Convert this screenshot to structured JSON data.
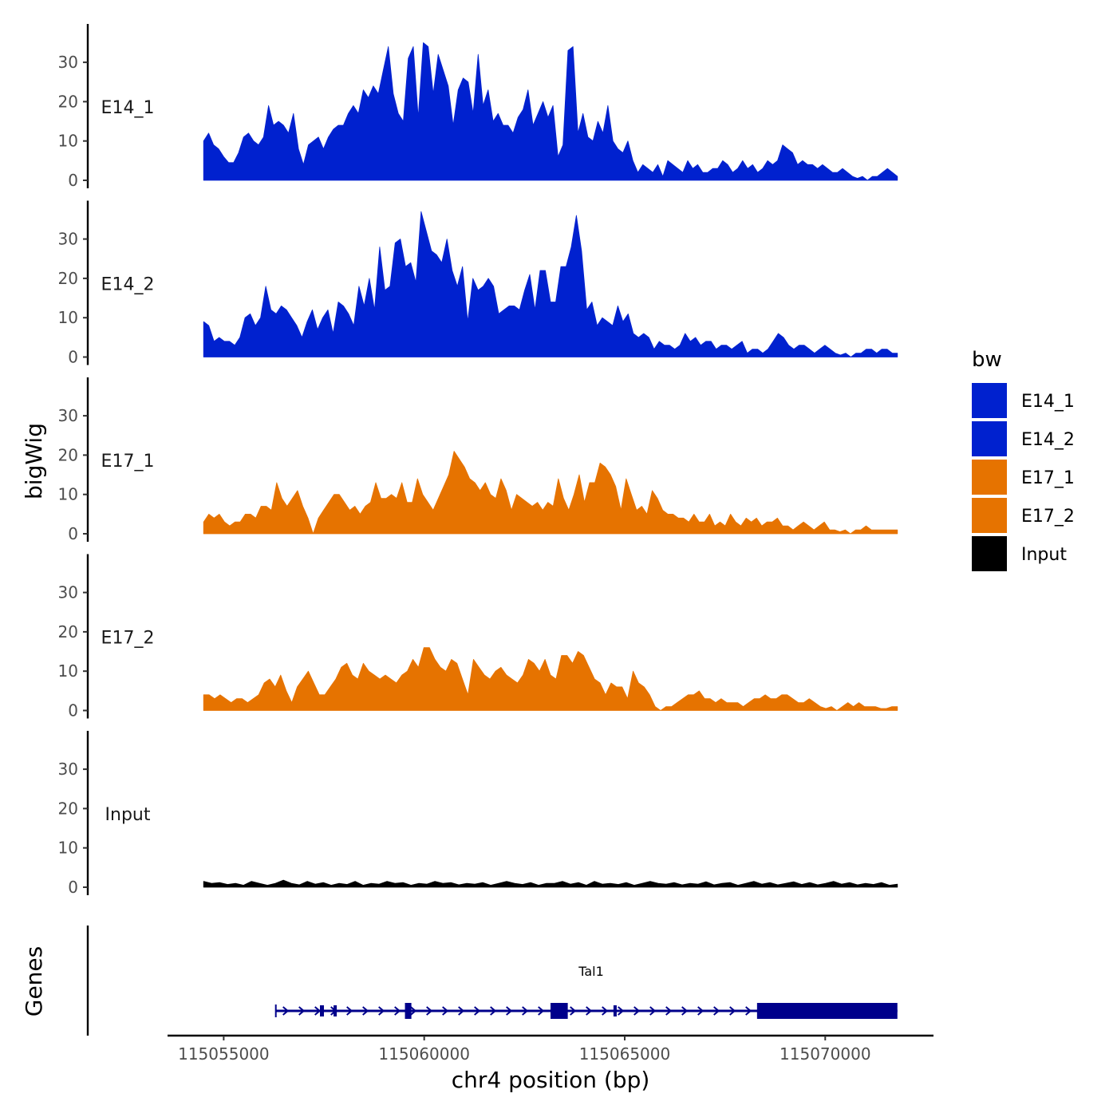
{
  "chart_data": {
    "type": "area",
    "ylabel": "bigWig",
    "xlabel": "chr4 position (bp)",
    "x_range": [
      115054500,
      115071800
    ],
    "x_axis_range": [
      115053600,
      115072700
    ],
    "x_ticks": [
      115055000,
      115060000,
      115065000,
      115070000
    ],
    "x_tick_labels": [
      "115055000",
      "115060000",
      "115065000",
      "115070000"
    ],
    "y_range": [
      0,
      40
    ],
    "y_ticks": [
      0,
      10,
      20,
      30
    ],
    "y_tick_labels": [
      "0",
      "10",
      "20",
      "30"
    ],
    "tracks": [
      {
        "name": "E14_1",
        "color": "#0021CF",
        "values": [
          10,
          12,
          9,
          8,
          6,
          4.5,
          4.5,
          7,
          11,
          12,
          10,
          9,
          11,
          19,
          14,
          15,
          14,
          12,
          17,
          8,
          4,
          9,
          10,
          11,
          8,
          11,
          13,
          14,
          14,
          17,
          19,
          17,
          23,
          21,
          24,
          22,
          28,
          34,
          22,
          17,
          15,
          31,
          34,
          16,
          35,
          34,
          22,
          32,
          28,
          24,
          14,
          23,
          26,
          25,
          17,
          32,
          19,
          23,
          15,
          17,
          14,
          14,
          12,
          16,
          18,
          23,
          14,
          17,
          20,
          16,
          19,
          6,
          9,
          33,
          34,
          12,
          17,
          11,
          10,
          15,
          12,
          19,
          10,
          8,
          7,
          10,
          5,
          2,
          4,
          3,
          2,
          4,
          1,
          5,
          4,
          3,
          2,
          5,
          3,
          4,
          2,
          2,
          3,
          3,
          5,
          4,
          2,
          3,
          5,
          3,
          4,
          2,
          3,
          5,
          4,
          5,
          9,
          8,
          7,
          4,
          5,
          4,
          4,
          3,
          4,
          3,
          2,
          2,
          3,
          2,
          1,
          0.5,
          1,
          0,
          1,
          1,
          2,
          3,
          2,
          1
        ]
      },
      {
        "name": "E14_2",
        "color": "#0021CF",
        "values": [
          9,
          8,
          4,
          5,
          4,
          4,
          3,
          5,
          10,
          11,
          8,
          10,
          18,
          12,
          11,
          13,
          12,
          10,
          8,
          5,
          9,
          12,
          7,
          10,
          12,
          6,
          14,
          13,
          11,
          8,
          18,
          13,
          20,
          12,
          28,
          17,
          18,
          29,
          30,
          23,
          24,
          19,
          37,
          32,
          27,
          26,
          24,
          30,
          22,
          18,
          23,
          9,
          20,
          17,
          18,
          20,
          18,
          11,
          12,
          13,
          13,
          12,
          17,
          21,
          12,
          22,
          22,
          14,
          14,
          23,
          23,
          28,
          36,
          27,
          12,
          14,
          8,
          10,
          9,
          8,
          13,
          9,
          11,
          6,
          5,
          6,
          5,
          2,
          4,
          3,
          3,
          2,
          3,
          6,
          4,
          5,
          3,
          4,
          4,
          2,
          3,
          3,
          2,
          3,
          4,
          1,
          2,
          2,
          1,
          2,
          4,
          6,
          5,
          3,
          2,
          3,
          3,
          2,
          1,
          2,
          3,
          2,
          1,
          0.5,
          1,
          0,
          1,
          1,
          2,
          2,
          1,
          2,
          2,
          1,
          1
        ]
      },
      {
        "name": "E17_1",
        "color": "#E67300",
        "values": [
          3,
          5,
          4,
          5,
          3,
          2,
          3,
          3,
          5,
          5,
          4,
          7,
          7,
          6,
          13,
          9,
          7,
          9,
          11,
          7,
          4,
          0,
          4,
          6,
          8,
          10,
          10,
          8,
          6,
          7,
          5,
          7,
          8,
          13,
          9,
          9,
          10,
          9,
          13,
          8,
          8,
          14,
          10,
          8,
          6,
          9,
          12,
          15,
          21,
          19,
          17,
          14,
          13,
          11,
          13,
          10,
          9,
          14,
          11,
          6,
          10,
          9,
          8,
          7,
          8,
          6,
          8,
          7,
          14,
          9,
          6,
          10,
          15,
          8,
          13,
          13,
          18,
          17,
          15,
          12,
          6,
          14,
          10,
          6,
          7,
          5,
          11,
          9,
          6,
          5,
          5,
          4,
          4,
          3,
          5,
          3,
          3,
          5,
          2,
          3,
          2,
          5,
          3,
          2,
          4,
          3,
          4,
          2,
          3,
          3,
          4,
          2,
          2,
          1,
          2,
          3,
          2,
          1,
          2,
          3,
          1,
          1,
          0.5,
          1,
          0,
          1,
          1,
          2,
          1,
          1,
          1,
          1,
          1,
          1
        ]
      },
      {
        "name": "E17_2",
        "color": "#E67300",
        "values": [
          4,
          4,
          3,
          4,
          3,
          2,
          3,
          3,
          2,
          3,
          4,
          7,
          8,
          6,
          9,
          5,
          2,
          6,
          8,
          10,
          7,
          4,
          4,
          6,
          8,
          11,
          12,
          9,
          8,
          12,
          10,
          9,
          8,
          9,
          8,
          7,
          9,
          10,
          13,
          11,
          16,
          16,
          13,
          11,
          10,
          13,
          12,
          8,
          4,
          13,
          11,
          9,
          8,
          10,
          11,
          9,
          8,
          7,
          9,
          13,
          12,
          10,
          13,
          9,
          8,
          14,
          14,
          12,
          15,
          14,
          11,
          8,
          7,
          4,
          7,
          6,
          6,
          3,
          10,
          7,
          6,
          4,
          1,
          0,
          1,
          1,
          2,
          3,
          4,
          4,
          5,
          3,
          3,
          2,
          3,
          2,
          2,
          2,
          1,
          2,
          3,
          3,
          4,
          3,
          3,
          4,
          4,
          3,
          2,
          2,
          3,
          2,
          1,
          0.5,
          1,
          0,
          1,
          2,
          1,
          2,
          1,
          1,
          1,
          0.5,
          0.5,
          1,
          1
        ]
      },
      {
        "name": "Input",
        "color": "#000000",
        "values": [
          1.5,
          1,
          1.2,
          0.7,
          1,
          0.5,
          1.5,
          1,
          0.5,
          1,
          1.8,
          1,
          0.6,
          1.5,
          0.8,
          1.2,
          0.5,
          1,
          0.7,
          1.5,
          0.5,
          1,
          0.8,
          1.5,
          1,
          1.2,
          0.5,
          1,
          0.8,
          1.5,
          1,
          1.2,
          0.6,
          1,
          0.8,
          1.2,
          0.5,
          1,
          1.5,
          1,
          0.7,
          1.2,
          0.5,
          1,
          1,
          1.5,
          0.8,
          1.2,
          0.5,
          1.5,
          0.8,
          1,
          0.7,
          1.2,
          0.5,
          1,
          1.5,
          1,
          0.8,
          1.2,
          0.6,
          1,
          0.8,
          1.4,
          0.6,
          1,
          1.2,
          0.5,
          1,
          1.5,
          0.8,
          1.2,
          0.6,
          1,
          1.4,
          0.7,
          1.2,
          0.6,
          1,
          1.5,
          0.8,
          1.2,
          0.6,
          1,
          0.7,
          1.2,
          0.5,
          0.8
        ]
      }
    ],
    "legend": {
      "title": "bw",
      "position": "right",
      "entries": [
        {
          "label": "E14_1",
          "color": "#0021CF"
        },
        {
          "label": "E14_2",
          "color": "#0021CF"
        },
        {
          "label": "E17_1",
          "color": "#E67300"
        },
        {
          "label": "E17_2",
          "color": "#E67300"
        },
        {
          "label": "Input",
          "color": "#000000"
        }
      ]
    },
    "gene_track": {
      "label": "Genes",
      "color": "#00008B",
      "gene": {
        "name": "Tal1",
        "start": 115056300,
        "end": 115071800,
        "strand": "+",
        "exons": [
          [
            115057400,
            115057500,
            "small"
          ],
          [
            115057740,
            115057820,
            "small"
          ],
          [
            115059520,
            115059680,
            "medium"
          ],
          [
            115063150,
            115063580,
            "large"
          ],
          [
            115064720,
            115064800,
            "small"
          ],
          [
            115068300,
            115071800,
            "large"
          ]
        ]
      }
    }
  }
}
